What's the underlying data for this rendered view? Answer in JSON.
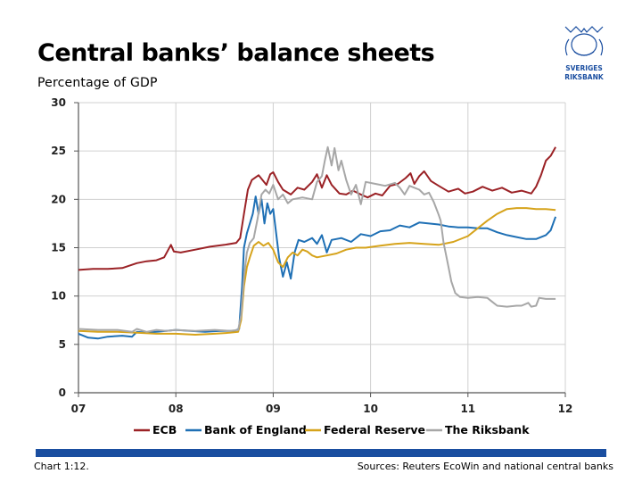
{
  "title": "Central banks’ balance sheets",
  "subtitle": "Percentage of GDP",
  "logo": {
    "text_line1": "SVERIGES",
    "text_line2": "RIKSBANK",
    "color": "#1a4ea0"
  },
  "footer": {
    "chart_number": "Chart 1:12.",
    "source": "Sources: Reuters EcoWin and national central banks",
    "bar_color": "#1a4ea0"
  },
  "chart_data": {
    "type": "line",
    "title": "Central banks’ balance sheets",
    "ylabel": "Percentage of GDP",
    "xlabel": "",
    "xlim": [
      2007.0,
      2012.0
    ],
    "ylim": [
      0,
      30
    ],
    "x_ticks": [
      {
        "value": 2007,
        "label": "07"
      },
      {
        "value": 2008,
        "label": "08"
      },
      {
        "value": 2009,
        "label": "09"
      },
      {
        "value": 2010,
        "label": "10"
      },
      {
        "value": 2011,
        "label": "11"
      },
      {
        "value": 2012,
        "label": "12"
      }
    ],
    "y_ticks": [
      0,
      5,
      10,
      15,
      20,
      25,
      30
    ],
    "grid": true,
    "legend_position": "bottom",
    "series": [
      {
        "name": "ECB",
        "color": "#9b2226",
        "points": [
          [
            2007.0,
            12.7
          ],
          [
            2007.15,
            12.8
          ],
          [
            2007.3,
            12.8
          ],
          [
            2007.45,
            12.9
          ],
          [
            2007.6,
            13.4
          ],
          [
            2007.7,
            13.6
          ],
          [
            2007.8,
            13.7
          ],
          [
            2007.88,
            14.0
          ],
          [
            2007.95,
            15.3
          ],
          [
            2007.98,
            14.6
          ],
          [
            2008.05,
            14.5
          ],
          [
            2008.2,
            14.8
          ],
          [
            2008.35,
            15.1
          ],
          [
            2008.5,
            15.3
          ],
          [
            2008.62,
            15.5
          ],
          [
            2008.66,
            16.0
          ],
          [
            2008.7,
            18.5
          ],
          [
            2008.74,
            21.0
          ],
          [
            2008.78,
            22.0
          ],
          [
            2008.85,
            22.5
          ],
          [
            2008.93,
            21.5
          ],
          [
            2008.97,
            22.6
          ],
          [
            2009.0,
            22.8
          ],
          [
            2009.05,
            21.8
          ],
          [
            2009.1,
            21.0
          ],
          [
            2009.18,
            20.5
          ],
          [
            2009.25,
            21.2
          ],
          [
            2009.32,
            21.0
          ],
          [
            2009.4,
            21.8
          ],
          [
            2009.45,
            22.6
          ],
          [
            2009.5,
            21.2
          ],
          [
            2009.55,
            22.5
          ],
          [
            2009.6,
            21.5
          ],
          [
            2009.68,
            20.6
          ],
          [
            2009.75,
            20.5
          ],
          [
            2009.82,
            20.9
          ],
          [
            2009.9,
            20.5
          ],
          [
            2009.97,
            20.2
          ],
          [
            2010.05,
            20.6
          ],
          [
            2010.12,
            20.4
          ],
          [
            2010.2,
            21.4
          ],
          [
            2010.28,
            21.6
          ],
          [
            2010.36,
            22.2
          ],
          [
            2010.41,
            22.7
          ],
          [
            2010.45,
            21.6
          ],
          [
            2010.5,
            22.4
          ],
          [
            2010.55,
            22.9
          ],
          [
            2010.62,
            21.9
          ],
          [
            2010.7,
            21.4
          ],
          [
            2010.8,
            20.8
          ],
          [
            2010.9,
            21.1
          ],
          [
            2010.97,
            20.6
          ],
          [
            2011.05,
            20.8
          ],
          [
            2011.15,
            21.3
          ],
          [
            2011.25,
            20.9
          ],
          [
            2011.35,
            21.2
          ],
          [
            2011.45,
            20.7
          ],
          [
            2011.55,
            20.9
          ],
          [
            2011.65,
            20.6
          ],
          [
            2011.7,
            21.3
          ],
          [
            2011.75,
            22.5
          ],
          [
            2011.8,
            24.0
          ],
          [
            2011.85,
            24.5
          ],
          [
            2011.9,
            25.4
          ]
        ]
      },
      {
        "name": "Bank of England",
        "color": "#1f70b5",
        "points": [
          [
            2007.0,
            6.1
          ],
          [
            2007.1,
            5.7
          ],
          [
            2007.2,
            5.6
          ],
          [
            2007.3,
            5.8
          ],
          [
            2007.45,
            5.9
          ],
          [
            2007.55,
            5.8
          ],
          [
            2007.6,
            6.3
          ],
          [
            2007.7,
            6.2
          ],
          [
            2007.8,
            6.3
          ],
          [
            2007.9,
            6.4
          ],
          [
            2008.0,
            6.5
          ],
          [
            2008.15,
            6.4
          ],
          [
            2008.3,
            6.3
          ],
          [
            2008.45,
            6.4
          ],
          [
            2008.6,
            6.4
          ],
          [
            2008.65,
            6.6
          ],
          [
            2008.68,
            11.0
          ],
          [
            2008.7,
            15.0
          ],
          [
            2008.73,
            16.5
          ],
          [
            2008.76,
            17.5
          ],
          [
            2008.79,
            18.5
          ],
          [
            2008.82,
            20.3
          ],
          [
            2008.85,
            18.5
          ],
          [
            2008.88,
            20.0
          ],
          [
            2008.91,
            17.5
          ],
          [
            2008.94,
            19.6
          ],
          [
            2008.97,
            18.5
          ],
          [
            2009.0,
            19.0
          ],
          [
            2009.03,
            16.5
          ],
          [
            2009.06,
            14.0
          ],
          [
            2009.1,
            12.0
          ],
          [
            2009.14,
            13.5
          ],
          [
            2009.18,
            11.8
          ],
          [
            2009.22,
            14.5
          ],
          [
            2009.26,
            15.8
          ],
          [
            2009.32,
            15.6
          ],
          [
            2009.4,
            16.0
          ],
          [
            2009.45,
            15.4
          ],
          [
            2009.5,
            16.3
          ],
          [
            2009.55,
            14.5
          ],
          [
            2009.6,
            15.8
          ],
          [
            2009.7,
            16.0
          ],
          [
            2009.8,
            15.6
          ],
          [
            2009.9,
            16.4
          ],
          [
            2010.0,
            16.2
          ],
          [
            2010.1,
            16.7
          ],
          [
            2010.2,
            16.8
          ],
          [
            2010.3,
            17.3
          ],
          [
            2010.4,
            17.1
          ],
          [
            2010.5,
            17.6
          ],
          [
            2010.6,
            17.5
          ],
          [
            2010.7,
            17.4
          ],
          [
            2010.8,
            17.2
          ],
          [
            2010.9,
            17.1
          ],
          [
            2011.0,
            17.1
          ],
          [
            2011.1,
            17.0
          ],
          [
            2011.2,
            17.0
          ],
          [
            2011.3,
            16.6
          ],
          [
            2011.4,
            16.3
          ],
          [
            2011.5,
            16.1
          ],
          [
            2011.6,
            15.9
          ],
          [
            2011.7,
            15.9
          ],
          [
            2011.8,
            16.3
          ],
          [
            2011.85,
            16.8
          ],
          [
            2011.9,
            18.2
          ]
        ]
      },
      {
        "name": "Federal Reserve",
        "color": "#d6a31b",
        "points": [
          [
            2007.0,
            6.4
          ],
          [
            2007.2,
            6.3
          ],
          [
            2007.4,
            6.3
          ],
          [
            2007.6,
            6.2
          ],
          [
            2007.8,
            6.1
          ],
          [
            2008.0,
            6.1
          ],
          [
            2008.2,
            6.0
          ],
          [
            2008.4,
            6.1
          ],
          [
            2008.55,
            6.2
          ],
          [
            2008.64,
            6.3
          ],
          [
            2008.67,
            7.5
          ],
          [
            2008.7,
            11.0
          ],
          [
            2008.73,
            13.0
          ],
          [
            2008.76,
            14.0
          ],
          [
            2008.8,
            15.2
          ],
          [
            2008.85,
            15.6
          ],
          [
            2008.9,
            15.2
          ],
          [
            2008.95,
            15.5
          ],
          [
            2009.0,
            14.8
          ],
          [
            2009.05,
            13.5
          ],
          [
            2009.1,
            13.0
          ],
          [
            2009.15,
            14.0
          ],
          [
            2009.2,
            14.5
          ],
          [
            2009.25,
            14.2
          ],
          [
            2009.3,
            14.8
          ],
          [
            2009.35,
            14.6
          ],
          [
            2009.4,
            14.2
          ],
          [
            2009.45,
            14.0
          ],
          [
            2009.55,
            14.2
          ],
          [
            2009.65,
            14.4
          ],
          [
            2009.75,
            14.8
          ],
          [
            2009.85,
            15.0
          ],
          [
            2009.95,
            15.0
          ],
          [
            2010.1,
            15.2
          ],
          [
            2010.25,
            15.4
          ],
          [
            2010.4,
            15.5
          ],
          [
            2010.55,
            15.4
          ],
          [
            2010.7,
            15.3
          ],
          [
            2010.85,
            15.6
          ],
          [
            2011.0,
            16.2
          ],
          [
            2011.1,
            17.0
          ],
          [
            2011.2,
            17.8
          ],
          [
            2011.3,
            18.5
          ],
          [
            2011.4,
            19.0
          ],
          [
            2011.5,
            19.1
          ],
          [
            2011.6,
            19.1
          ],
          [
            2011.7,
            19.0
          ],
          [
            2011.8,
            19.0
          ],
          [
            2011.9,
            18.9
          ]
        ]
      },
      {
        "name": "The Riksbank",
        "color": "#a7a7a7",
        "points": [
          [
            2007.0,
            6.6
          ],
          [
            2007.2,
            6.5
          ],
          [
            2007.4,
            6.5
          ],
          [
            2007.55,
            6.3
          ],
          [
            2007.6,
            6.6
          ],
          [
            2007.7,
            6.3
          ],
          [
            2007.8,
            6.5
          ],
          [
            2007.9,
            6.4
          ],
          [
            2008.0,
            6.5
          ],
          [
            2008.2,
            6.4
          ],
          [
            2008.4,
            6.5
          ],
          [
            2008.55,
            6.4
          ],
          [
            2008.64,
            6.5
          ],
          [
            2008.67,
            8.0
          ],
          [
            2008.7,
            12.0
          ],
          [
            2008.73,
            14.5
          ],
          [
            2008.76,
            15.5
          ],
          [
            2008.8,
            16.0
          ],
          [
            2008.84,
            18.0
          ],
          [
            2008.88,
            20.5
          ],
          [
            2008.92,
            21.0
          ],
          [
            2008.96,
            20.6
          ],
          [
            2009.0,
            21.5
          ],
          [
            2009.05,
            20.0
          ],
          [
            2009.1,
            20.5
          ],
          [
            2009.15,
            19.6
          ],
          [
            2009.2,
            20.0
          ],
          [
            2009.3,
            20.2
          ],
          [
            2009.4,
            20.0
          ],
          [
            2009.45,
            21.8
          ],
          [
            2009.5,
            22.4
          ],
          [
            2009.53,
            24.0
          ],
          [
            2009.56,
            25.4
          ],
          [
            2009.6,
            23.5
          ],
          [
            2009.63,
            25.3
          ],
          [
            2009.67,
            23.0
          ],
          [
            2009.7,
            24.0
          ],
          [
            2009.75,
            22.0
          ],
          [
            2009.8,
            20.5
          ],
          [
            2009.85,
            21.5
          ],
          [
            2009.9,
            19.5
          ],
          [
            2009.95,
            21.8
          ],
          [
            2010.05,
            21.6
          ],
          [
            2010.15,
            21.4
          ],
          [
            2010.25,
            21.7
          ],
          [
            2010.3,
            21.2
          ],
          [
            2010.35,
            20.5
          ],
          [
            2010.4,
            21.4
          ],
          [
            2010.5,
            21.0
          ],
          [
            2010.55,
            20.5
          ],
          [
            2010.6,
            20.7
          ],
          [
            2010.65,
            19.7
          ],
          [
            2010.7,
            18.4
          ],
          [
            2010.72,
            17.8
          ],
          [
            2010.75,
            15.5
          ],
          [
            2010.8,
            13.0
          ],
          [
            2010.83,
            11.5
          ],
          [
            2010.87,
            10.3
          ],
          [
            2010.92,
            9.9
          ],
          [
            2011.0,
            9.8
          ],
          [
            2011.1,
            9.9
          ],
          [
            2011.2,
            9.8
          ],
          [
            2011.25,
            9.4
          ],
          [
            2011.3,
            9.0
          ],
          [
            2011.4,
            8.9
          ],
          [
            2011.5,
            9.0
          ],
          [
            2011.55,
            9.0
          ],
          [
            2011.62,
            9.3
          ],
          [
            2011.65,
            8.9
          ],
          [
            2011.7,
            9.0
          ],
          [
            2011.73,
            9.8
          ],
          [
            2011.8,
            9.7
          ],
          [
            2011.9,
            9.7
          ]
        ]
      }
    ]
  }
}
